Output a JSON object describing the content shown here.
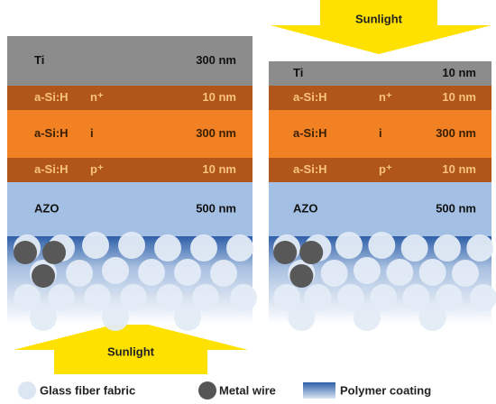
{
  "stacks": [
    {
      "layers": [
        {
          "material": "Ti",
          "doping": "",
          "thickness": "300 nm"
        },
        {
          "material": "a-Si:H",
          "doping": "n⁺",
          "thickness": "10 nm"
        },
        {
          "material": "a-Si:H",
          "doping": "i",
          "thickness": "300 nm"
        },
        {
          "material": "a-Si:H",
          "doping": "p⁺",
          "thickness": "10 nm"
        },
        {
          "material": "AZO",
          "doping": "",
          "thickness": "500 nm"
        }
      ],
      "sunlight": "Sunlight"
    },
    {
      "layers": [
        {
          "material": "Ti",
          "doping": "",
          "thickness": "10 nm"
        },
        {
          "material": "a-Si:H",
          "doping": "n⁺",
          "thickness": "10 nm"
        },
        {
          "material": "a-Si:H",
          "doping": "i",
          "thickness": "300 nm"
        },
        {
          "material": "a-Si:H",
          "doping": "p⁺",
          "thickness": "10 nm"
        },
        {
          "material": "AZO",
          "doping": "",
          "thickness": "500 nm"
        }
      ],
      "sunlight": "Sunlight"
    }
  ],
  "legend": [
    {
      "label": "Glass fiber fabric"
    },
    {
      "label": "Metal wire"
    },
    {
      "label": "Polymer coating"
    }
  ]
}
